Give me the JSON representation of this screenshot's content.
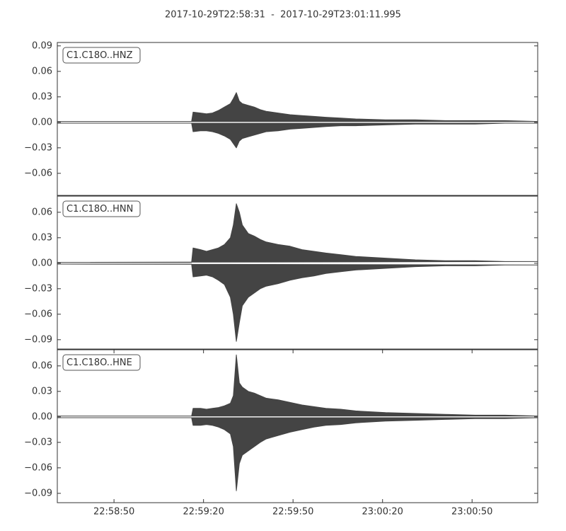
{
  "title": "2017-10-29T22:58:31  -  2017-10-29T23:01:11.995",
  "chart_data": [
    {
      "type": "seismogram",
      "label": "C1.C18O..HNZ",
      "color": "#444444",
      "xlim": [
        0,
        160.995
      ],
      "x": [
        0,
        20,
        40,
        45,
        45.5,
        48,
        50,
        52,
        54,
        56,
        58,
        59,
        60,
        61,
        62,
        64,
        66,
        68,
        70,
        74,
        78,
        82,
        86,
        90,
        95,
        100,
        110,
        120,
        130,
        140,
        150,
        161
      ],
      "upper": [
        0.001,
        0.001,
        0.001,
        0.001,
        0.012,
        0.011,
        0.01,
        0.011,
        0.014,
        0.018,
        0.022,
        0.028,
        0.035,
        0.025,
        0.022,
        0.02,
        0.018,
        0.015,
        0.013,
        0.011,
        0.009,
        0.008,
        0.007,
        0.006,
        0.005,
        0.004,
        0.003,
        0.003,
        0.002,
        0.002,
        0.002,
        0.001
      ],
      "lower": [
        -0.001,
        -0.001,
        -0.001,
        -0.001,
        -0.011,
        -0.01,
        -0.01,
        -0.011,
        -0.013,
        -0.016,
        -0.02,
        -0.025,
        -0.03,
        -0.022,
        -0.019,
        -0.017,
        -0.015,
        -0.013,
        -0.011,
        -0.01,
        -0.008,
        -0.007,
        -0.006,
        -0.005,
        -0.004,
        -0.004,
        -0.003,
        -0.002,
        -0.002,
        -0.002,
        -0.001,
        -0.001
      ],
      "ylim": [
        -0.086,
        0.094
      ],
      "yticks": [
        {
          "value": -0.06,
          "label": "−0.06"
        },
        {
          "value": -0.03,
          "label": "−0.03"
        },
        {
          "value": 0,
          "label": "0.00"
        },
        {
          "value": 0.03,
          "label": "0.03"
        },
        {
          "value": 0.06,
          "label": "0.06"
        },
        {
          "value": 0.09,
          "label": "0.09"
        }
      ]
    },
    {
      "type": "seismogram",
      "label": "C1.C18O..HNN",
      "color": "#444444",
      "xlim": [
        0,
        160.995
      ],
      "x": [
        0,
        20,
        40,
        45,
        45.5,
        48,
        50,
        52,
        54,
        56,
        58,
        59,
        60,
        61,
        62,
        64,
        66,
        68,
        70,
        74,
        78,
        82,
        86,
        90,
        95,
        100,
        110,
        120,
        130,
        140,
        150,
        161
      ],
      "upper": [
        0.001,
        0.001,
        0.001,
        0.001,
        0.018,
        0.016,
        0.014,
        0.016,
        0.018,
        0.022,
        0.03,
        0.045,
        0.07,
        0.06,
        0.045,
        0.035,
        0.032,
        0.028,
        0.025,
        0.022,
        0.02,
        0.016,
        0.014,
        0.012,
        0.01,
        0.008,
        0.006,
        0.004,
        0.003,
        0.003,
        0.002,
        0.002
      ],
      "lower": [
        -0.001,
        -0.001,
        -0.001,
        -0.001,
        -0.016,
        -0.015,
        -0.014,
        -0.016,
        -0.02,
        -0.025,
        -0.04,
        -0.06,
        -0.092,
        -0.07,
        -0.05,
        -0.04,
        -0.035,
        -0.03,
        -0.027,
        -0.024,
        -0.02,
        -0.017,
        -0.015,
        -0.012,
        -0.01,
        -0.008,
        -0.006,
        -0.004,
        -0.003,
        -0.003,
        -0.002,
        -0.002
      ],
      "ylim": [
        -0.101,
        0.079
      ],
      "yticks": [
        {
          "value": -0.09,
          "label": "−0.09"
        },
        {
          "value": -0.06,
          "label": "−0.06"
        },
        {
          "value": -0.03,
          "label": "−0.03"
        },
        {
          "value": 0,
          "label": "0.00"
        },
        {
          "value": 0.03,
          "label": "0.03"
        },
        {
          "value": 0.06,
          "label": "0.06"
        }
      ]
    },
    {
      "type": "seismogram",
      "label": "C1.C18O..HNE",
      "color": "#444444",
      "xlim": [
        0,
        160.995
      ],
      "xticks": [
        {
          "value": 19,
          "label": "22:58:50"
        },
        {
          "value": 49,
          "label": "22:59:20"
        },
        {
          "value": 79,
          "label": "22:59:50"
        },
        {
          "value": 109,
          "label": "23:00:20"
        },
        {
          "value": 139,
          "label": "23:00:50"
        }
      ],
      "x": [
        0,
        20,
        40,
        45,
        45.5,
        48,
        50,
        52,
        54,
        56,
        58,
        59,
        60,
        61,
        62,
        64,
        66,
        68,
        70,
        74,
        78,
        82,
        86,
        90,
        95,
        100,
        110,
        120,
        130,
        140,
        150,
        161
      ],
      "upper": [
        0.001,
        0.001,
        0.001,
        0.001,
        0.01,
        0.01,
        0.009,
        0.01,
        0.011,
        0.013,
        0.016,
        0.025,
        0.073,
        0.04,
        0.035,
        0.03,
        0.028,
        0.025,
        0.022,
        0.02,
        0.017,
        0.014,
        0.012,
        0.01,
        0.009,
        0.007,
        0.005,
        0.004,
        0.003,
        0.002,
        0.002,
        0.001
      ],
      "lower": [
        -0.001,
        -0.001,
        -0.001,
        -0.001,
        -0.01,
        -0.01,
        -0.009,
        -0.01,
        -0.012,
        -0.015,
        -0.02,
        -0.035,
        -0.087,
        -0.055,
        -0.045,
        -0.04,
        -0.035,
        -0.03,
        -0.026,
        -0.022,
        -0.018,
        -0.015,
        -0.012,
        -0.01,
        -0.009,
        -0.007,
        -0.005,
        -0.004,
        -0.003,
        -0.002,
        -0.002,
        -0.001
      ],
      "ylim": [
        -0.101,
        0.079
      ],
      "yticks": [
        {
          "value": -0.09,
          "label": "−0.09"
        },
        {
          "value": -0.06,
          "label": "−0.06"
        },
        {
          "value": -0.03,
          "label": "−0.03"
        },
        {
          "value": 0,
          "label": "0.00"
        },
        {
          "value": 0.03,
          "label": "0.03"
        },
        {
          "value": 0.06,
          "label": "0.06"
        }
      ]
    }
  ]
}
